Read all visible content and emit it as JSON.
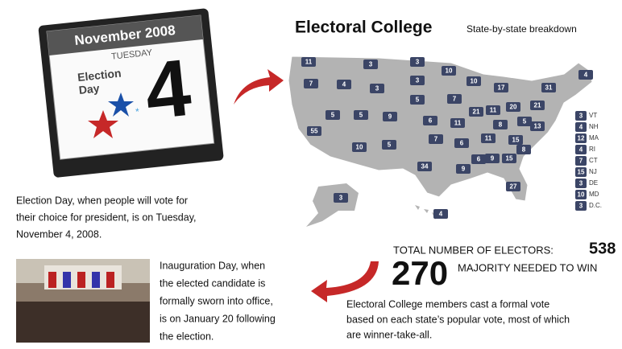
{
  "calendar": {
    "month": "November 2008",
    "weekday": "TUESDAY",
    "label_lines": [
      "Election",
      "Day"
    ],
    "day": "4"
  },
  "header": {
    "title": "Electoral College",
    "subtitle": "State-by-state breakdown"
  },
  "map": {
    "labels": [
      11,
      3,
      3,
      10,
      10,
      17,
      31,
      4,
      7,
      4,
      3,
      3,
      5,
      7,
      21,
      11,
      20,
      21,
      5,
      5,
      9,
      6,
      11,
      8,
      5,
      13,
      55,
      7,
      6,
      11,
      15,
      8,
      10,
      5,
      34,
      9,
      6,
      9,
      15,
      27,
      3,
      4
    ],
    "side_list": [
      {
        "value": 3,
        "label": "VT"
      },
      {
        "value": 4,
        "label": "NH"
      },
      {
        "value": 12,
        "label": "MA"
      },
      {
        "value": 4,
        "label": "RI"
      },
      {
        "value": 7,
        "label": "CT"
      },
      {
        "value": 15,
        "label": "NJ"
      },
      {
        "value": 3,
        "label": "DE"
      },
      {
        "value": 10,
        "label": "MD"
      },
      {
        "value": 3,
        "label": "D.C."
      }
    ]
  },
  "election_day_caption": [
    "Election Day, when people will vote for",
    "their choice for president, is on Tuesday,",
    "November 4, 2008."
  ],
  "electors": {
    "total_label": "TOTAL NUMBER OF ELECTORS:",
    "total": "538",
    "majority": "270",
    "majority_label": "MAJORITY NEEDED TO WIN"
  },
  "electoral_note": [
    "Electoral College members cast a formal vote",
    "based on each state’s popular vote, most of which",
    "are winner-take-all."
  ],
  "inauguration": [
    "Inauguration Day, when",
    "the elected candidate is",
    "formally sworn into office,",
    "is on January 20  following",
    "the election."
  ]
}
